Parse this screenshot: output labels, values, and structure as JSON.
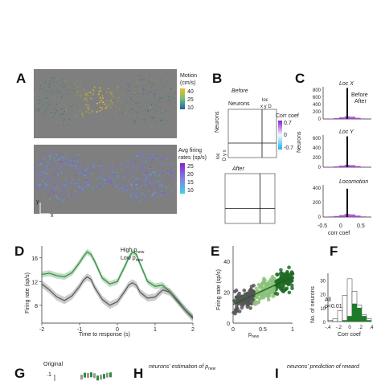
{
  "panels": {
    "A": {
      "letter": "A",
      "colorbar_motion": {
        "title_line1": "Motion",
        "title_line2": "(cm/s)",
        "ticks": [
          "40",
          "25",
          "10"
        ]
      },
      "colorbar_rate": {
        "title_line1": "Avg firing",
        "title_line2": "rates (sp/s)",
        "ticks": [
          "25",
          "20",
          "15",
          "10"
        ]
      },
      "axis_y": "y",
      "axis_x": "x",
      "colors": {
        "background": "#7f7f7f",
        "motion_low": "#1f5fa8",
        "motion_high": "#f0c020",
        "rate_low": "#3fd4e6",
        "rate_high": "#9b2bd6"
      }
    },
    "B": {
      "letter": "B",
      "before_title": "Before",
      "after_title": "After",
      "neurons_label": "Neurons",
      "loc_top": "loc",
      "xyD_top": "x y D",
      "neurons_side": "Neurons",
      "loc_side": "loc",
      "Dyx_side": "D y x",
      "cbar_title_line1": "Corr coef",
      "cbar_ticks": [
        "0.7",
        "0",
        "-0.7"
      ],
      "colors": {
        "high": "#8a1fd0",
        "mid": "#f4f7ff",
        "low": "#14b4ee"
      }
    },
    "C": {
      "letter": "C",
      "subplots": [
        {
          "title": "Loc X",
          "yticks": [
            "800",
            "600",
            "400",
            "200",
            "0"
          ],
          "legend_before": "Before",
          "legend_after": "After"
        },
        {
          "title": "Loc Y",
          "yticks": [
            "600",
            "400",
            "200",
            "0"
          ]
        },
        {
          "title": "Locomotion",
          "yticks": [
            "400",
            "200",
            "0"
          ]
        }
      ],
      "ylabel": "Neurons",
      "xticks": [
        "-0.5",
        "0",
        "0.5"
      ],
      "xlabel": "corr coef",
      "colors": {
        "before": "#a03cc8",
        "after": "#111111"
      }
    },
    "D": {
      "letter": "D",
      "legend_high": "High p",
      "legend_low": "Low p",
      "legend_sub": "new",
      "ylabel": "Firing rate (sp/s)",
      "xlabel": "Time to response (s)",
      "yticks": [
        "16",
        "12",
        "8"
      ],
      "xticks": [
        "-2",
        "-1",
        "0",
        "1",
        "2"
      ],
      "colors": {
        "high": "#2e8b3a",
        "low": "#555555"
      }
    },
    "E": {
      "letter": "E",
      "ylabel": "Firing rate (sp/s)",
      "xlabel": "p",
      "xlabel_sub": "new",
      "yticks": [
        "40",
        "20",
        "0"
      ],
      "xticks": [
        "0",
        "0.5",
        "1"
      ],
      "colors": {
        "low": "#555555",
        "mid": "#8bc27a",
        "high": "#1f6b24",
        "fit": "#1f5f1f"
      }
    },
    "F": {
      "letter": "F",
      "legend_all": "All",
      "legend_sig": "p<0.01",
      "ylabel": "No. of neurons",
      "xlabel": "Corr coef",
      "yticks": [
        "30",
        "20",
        "10",
        "0"
      ],
      "xticks": [
        "-.4",
        "-.2",
        "0",
        ".2",
        ".4"
      ],
      "colors": {
        "all": "#ffffff",
        "sig": "#1d7a2a"
      }
    },
    "G": {
      "letter": "G",
      "sublabel": "Original",
      "ytick": ".1"
    },
    "H": {
      "letter": "H",
      "title": "neurons' estimation of p",
      "title_sub": "new"
    },
    "I": {
      "letter": "I",
      "title": "neurons' prediction of reward"
    }
  },
  "chart_data": [
    {
      "type": "line",
      "panel": "D",
      "xlabel": "Time to response (s)",
      "ylabel": "Firing rate (sp/s)",
      "xlim": [
        -2,
        2
      ],
      "ylim": [
        5,
        18
      ],
      "x": [
        -2.0,
        -1.8,
        -1.6,
        -1.4,
        -1.2,
        -1.0,
        -0.9,
        -0.8,
        -0.7,
        -0.6,
        -0.4,
        -0.2,
        0.0,
        0.2,
        0.3,
        0.4,
        0.5,
        0.6,
        0.8,
        1.0,
        1.2,
        1.4,
        1.6,
        1.8,
        2.0
      ],
      "series": [
        {
          "name": "High p new",
          "values": [
            13.2,
            13.4,
            13.0,
            12.8,
            13.5,
            15.2,
            16.2,
            17.0,
            16.6,
            15.4,
            12.6,
            11.6,
            12.0,
            14.6,
            16.0,
            17.0,
            16.6,
            15.0,
            12.0,
            11.2,
            11.4,
            10.2,
            8.6,
            7.2,
            6.0
          ],
          "band": 0.5
        },
        {
          "name": "Low p new",
          "values": [
            11.6,
            10.6,
            9.4,
            8.8,
            9.6,
            11.2,
            12.2,
            12.8,
            12.4,
            11.0,
            9.0,
            8.0,
            8.6,
            10.4,
            11.4,
            11.8,
            11.4,
            10.2,
            9.2,
            9.4,
            10.6,
            10.2,
            8.8,
            7.2,
            5.8
          ],
          "band": 0.6
        }
      ]
    },
    {
      "type": "scatter",
      "panel": "E",
      "xlabel": "p new",
      "ylabel": "Firing rate (sp/s)",
      "xlim": [
        0,
        1
      ],
      "ylim": [
        0,
        50
      ],
      "fit_line": {
        "x": [
          0,
          1
        ],
        "y": [
          12,
          30
        ]
      },
      "point_count": 320
    },
    {
      "type": "bar",
      "panel": "F",
      "xlabel": "Corr coef",
      "ylabel": "No. of neurons",
      "ylim": [
        0,
        35
      ],
      "categories": [
        -0.35,
        -0.25,
        -0.15,
        -0.05,
        0.05,
        0.15,
        0.25,
        0.35,
        0.45
      ],
      "series": [
        {
          "name": "All",
          "values": [
            1,
            2,
            8,
            19,
            31,
            22,
            12,
            5,
            2
          ]
        },
        {
          "name": "p<0.01",
          "values": [
            0,
            0,
            0,
            1,
            4,
            13,
            10,
            4,
            1
          ]
        }
      ]
    },
    {
      "type": "bar",
      "panel": "C",
      "xlim": [
        -0.5,
        0.5
      ],
      "xlabel": "corr coef",
      "ylabel": "Neurons",
      "subplots": [
        {
          "title": "Loc X",
          "ylim": [
            0,
            850
          ],
          "before": [
            5,
            10,
            22,
            45,
            70,
            60,
            30,
            12,
            5
          ],
          "after_peak": 820
        },
        {
          "title": "Loc Y",
          "ylim": [
            0,
            720
          ],
          "before": [
            4,
            9,
            18,
            35,
            55,
            45,
            25,
            10,
            4
          ],
          "after_peak": 690
        },
        {
          "title": "Locomotion",
          "ylim": [
            0,
            500
          ],
          "before": [
            3,
            8,
            16,
            30,
            48,
            40,
            22,
            9,
            3
          ],
          "after_peak": 440
        }
      ]
    }
  ]
}
